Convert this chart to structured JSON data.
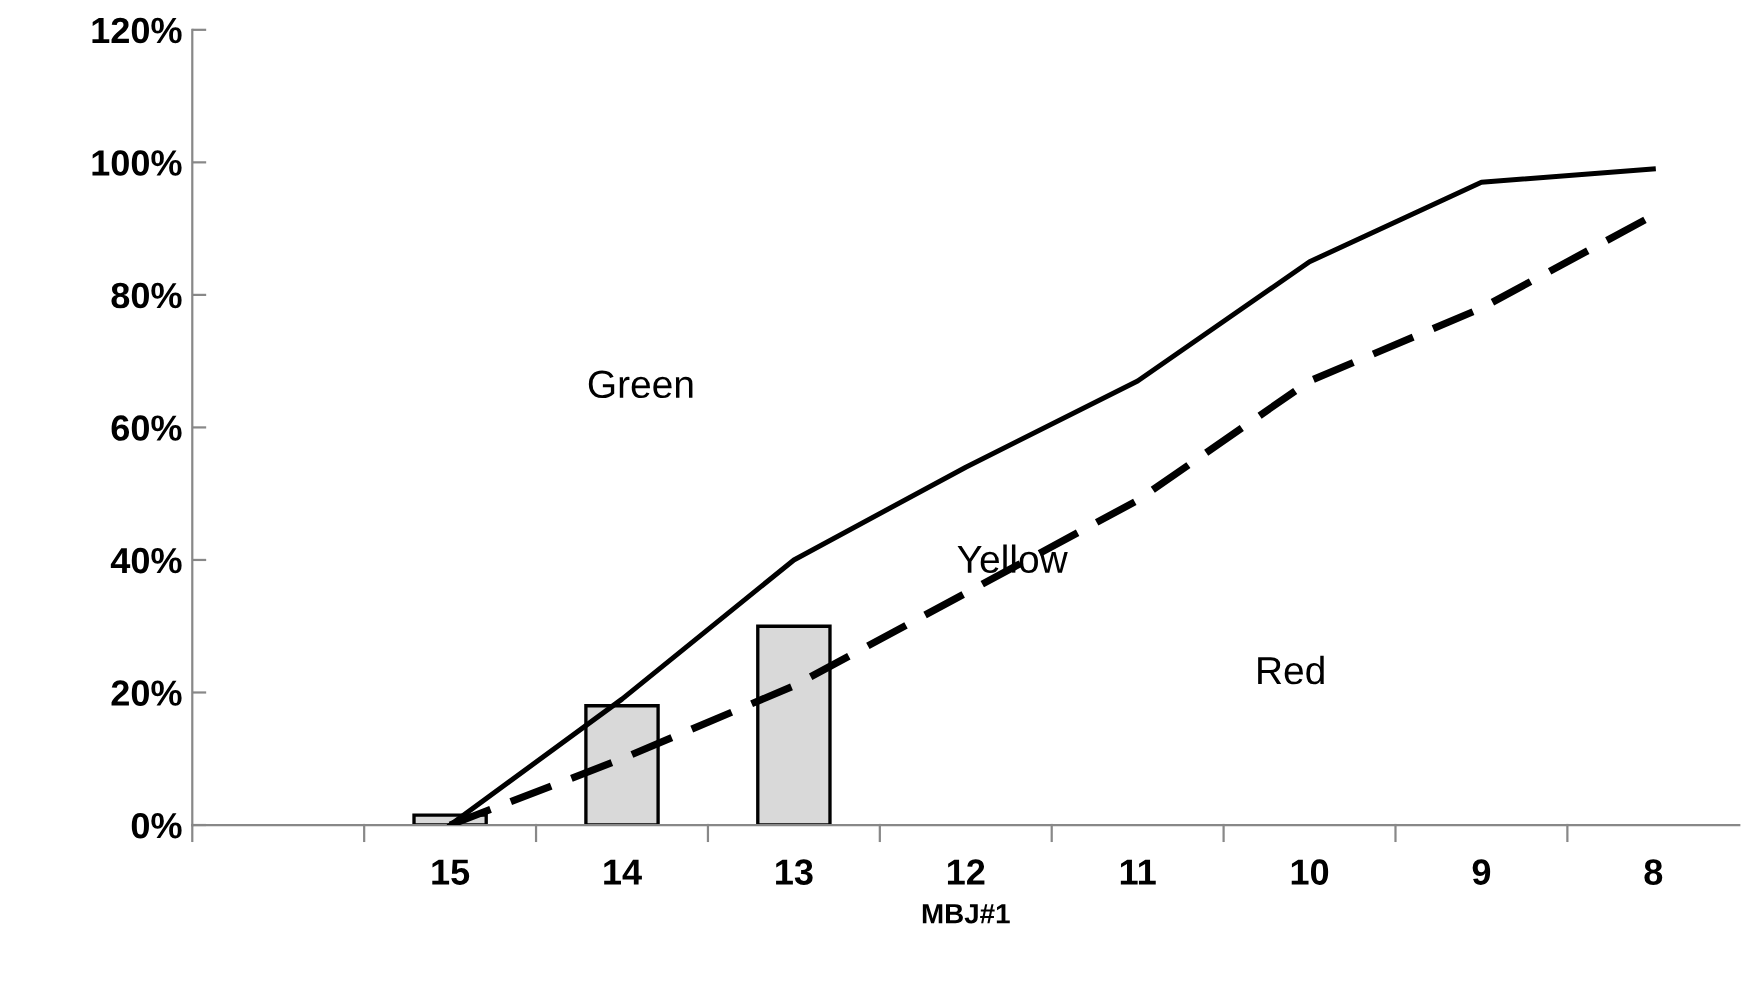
{
  "chart_data": {
    "type": "bar",
    "xlabel": "MBJ#1",
    "categories": [
      null,
      "15",
      "14",
      "13",
      "12",
      "11",
      "10",
      "9",
      "8"
    ],
    "series": [
      {
        "color": "#d9d9d9",
        "values": [
          null,
          1.5,
          18,
          30,
          null,
          null,
          null,
          null,
          null
        ]
      },
      {
        "type": "line",
        "color": "#000000",
        "line_style": "solid",
        "values": [
          null,
          0,
          19,
          40,
          54,
          67,
          85,
          97,
          99
        ]
      },
      {
        "type": "line",
        "color": "#000000",
        "line_style": "dashed",
        "values": [
          null,
          0,
          10,
          21,
          35,
          49,
          67,
          78,
          92
        ]
      }
    ],
    "ylim": [
      0,
      120
    ],
    "yticks": [
      {
        "value": 0,
        "label": "0%"
      },
      {
        "value": 20,
        "label": "20%"
      },
      {
        "value": 40,
        "label": "40%"
      },
      {
        "value": 60,
        "label": "60%"
      },
      {
        "value": 80,
        "label": "80%"
      },
      {
        "value": 100,
        "label": "100%"
      },
      {
        "value": 120,
        "label": "120%"
      }
    ],
    "annotations": [
      "Green",
      "Yellow",
      "Red"
    ],
    "grid": false,
    "legend": false,
    "marker": "none"
  }
}
